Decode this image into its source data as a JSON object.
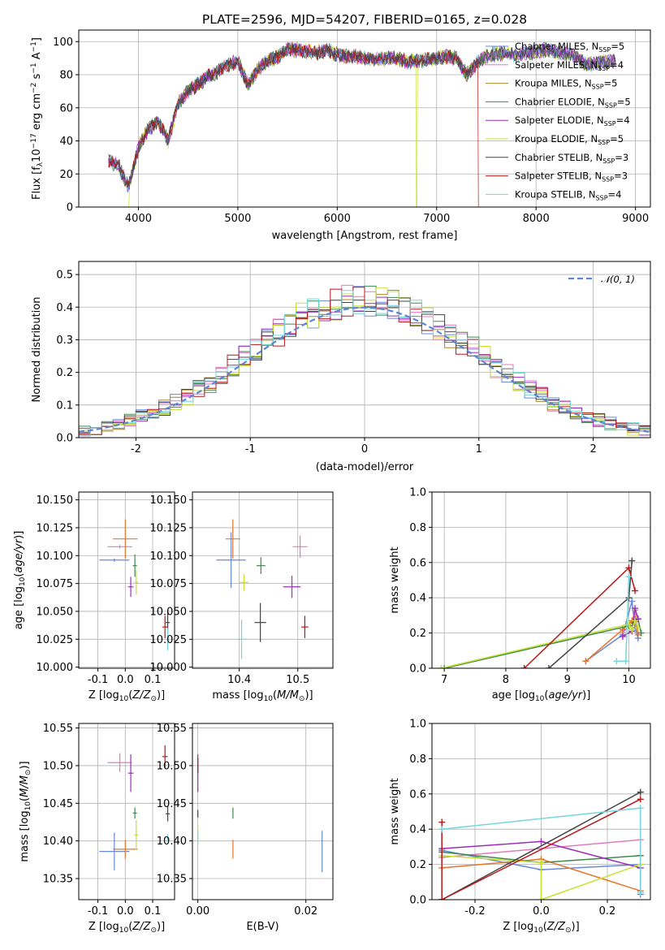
{
  "figure_title": "PLATE=2596, MJD=54207, FIBERID=0165, z=0.028",
  "models": [
    {
      "name": "Chabrier MILES, N",
      "sub": "SSP",
      "tail": "=5",
      "color": "#6688dd"
    },
    {
      "name": "Salpeter MILES, N",
      "sub": "SSP",
      "tail": "=4",
      "color": "#e27bbd"
    },
    {
      "name": "Kroupa MILES, N",
      "sub": "SSP",
      "tail": "=5",
      "color": "#a88a2a"
    },
    {
      "name": "Chabrier ELODIE, N",
      "sub": "SSP",
      "tail": "=5",
      "color": "#3e8a4e"
    },
    {
      "name": "Salpeter ELODIE, N",
      "sub": "SSP",
      "tail": "=4",
      "color": "#9b2fb8"
    },
    {
      "name": "Kroupa ELODIE, N",
      "sub": "SSP",
      "tail": "=5",
      "color": "#c9e02e"
    },
    {
      "name": "Chabrier STELIB, N",
      "sub": "SSP",
      "tail": "=3",
      "color": "#444444"
    },
    {
      "name": "Salpeter STELIB, N",
      "sub": "SSP",
      "tail": "=3",
      "color": "#b81818"
    },
    {
      "name": "Kroupa STELIB, N",
      "sub": "SSP",
      "tail": "=4",
      "color": "#76d6dc"
    }
  ],
  "colors": {
    "orange": "#e8742a",
    "gauss": "#5b86d3",
    "grid": "#b0b0b0"
  },
  "chart_data": [
    {
      "id": "spectrum",
      "type": "line",
      "xlabel": "wavelength [Angstrom, rest frame]",
      "ylabel": "Flux [f_λ 10^-17 erg cm^-2 s^-1 A^-1]",
      "xlim": [
        3400,
        9150
      ],
      "ylim": [
        0,
        107
      ],
      "xticks": [
        4000,
        5000,
        6000,
        7000,
        8000,
        9000
      ],
      "yticks": [
        0,
        20,
        40,
        60,
        80,
        100
      ],
      "x": [
        3700,
        3800,
        3900,
        4000,
        4100,
        4200,
        4300,
        4400,
        4500,
        4600,
        4700,
        4800,
        4900,
        5000,
        5100,
        5200,
        5300,
        5400,
        5500,
        5600,
        5700,
        5800,
        5900,
        6000,
        6100,
        6200,
        6300,
        6400,
        6500,
        6600,
        6700,
        6800,
        6900,
        7000,
        7100,
        7200,
        7300,
        7400,
        7500,
        7600,
        7700,
        7800,
        7900,
        8000,
        8100,
        8200,
        8300,
        8400,
        8500,
        8600,
        8700,
        8800
      ],
      "series": [
        {
          "values": [
            28,
            25,
            12,
            36,
            47,
            52,
            40,
            63,
            70,
            74,
            79,
            82,
            86,
            88,
            74,
            83,
            88,
            91,
            95,
            95,
            94,
            93,
            95,
            92,
            91,
            91,
            90,
            89,
            90,
            90,
            88,
            88,
            89,
            90,
            91,
            90,
            80,
            87,
            91,
            93,
            93,
            92,
            93,
            94,
            95,
            94,
            93,
            91,
            86,
            87,
            88,
            88
          ]
        }
      ],
      "cutoffs": [
        {
          "model": "Kroupa ELODIE",
          "x": 3910,
          "end": 6800
        },
        {
          "model": "Salpeter STELIB",
          "x": 7420
        },
        {
          "model": "Kroupa STELIB",
          "x": 3700
        },
        {
          "model": "Chabrier STELIB",
          "x": 3680
        }
      ]
    },
    {
      "id": "residuals",
      "type": "bar",
      "xlabel": "(data-model)/error",
      "ylabel": "Normed distribution",
      "xlim": [
        -2.5,
        2.5
      ],
      "ylim": [
        0,
        0.54
      ],
      "xticks": [
        -2,
        -1,
        0,
        1,
        2
      ],
      "yticks": [
        0.0,
        0.1,
        0.2,
        0.3,
        0.4,
        0.5
      ],
      "legend": "N(0,1)",
      "bin_width": 0.1,
      "bin_start": -2.5,
      "reference_gaussian": {
        "mean": 0,
        "sigma": 1
      }
    },
    {
      "id": "age-vs-Z",
      "type": "scatter",
      "xlabel": "Z [log10(Z/Z⊙)]",
      "ylabel": "age [log10(age/yr)]",
      "xlim": [
        -0.17,
        0.18
      ],
      "ylim": [
        9.999,
        10.157
      ],
      "xticks": [
        -0.1,
        0.0,
        0.1
      ],
      "yticks": [
        10.0,
        10.025,
        10.05,
        10.075,
        10.1,
        10.125,
        10.15
      ],
      "points": [
        {
          "x": -0.04,
          "y": 10.096,
          "ex": 0.11,
          "ey": 0.003
        },
        {
          "x": -0.02,
          "y": 10.108,
          "ex": 0.09,
          "ey": 0.003
        },
        {
          "x": 0.0,
          "y": 10.115,
          "ex": 0.09,
          "ey": 0.035
        },
        {
          "x": 0.035,
          "y": 10.091,
          "ex": 0.015,
          "ey": 0.02
        },
        {
          "x": 0.02,
          "y": 10.072,
          "ex": 0.02,
          "ey": 0.018
        },
        {
          "x": 0.04,
          "y": 10.076,
          "ex": 0.015,
          "ey": 0.022
        },
        {
          "x": 0.155,
          "y": 10.04,
          "ex": 0.015,
          "ey": 0.02
        },
        {
          "x": 0.145,
          "y": 10.036,
          "ex": 0.02,
          "ey": 0.02
        },
        {
          "x": 0.155,
          "y": 10.025,
          "ex": 0.01,
          "ey": 0.02
        }
      ]
    },
    {
      "id": "age-vs-mass",
      "type": "scatter",
      "xlabel": "mass [log10(M/M⊙)]",
      "ylabel": "",
      "xlim": [
        10.32,
        10.56
      ],
      "ylim": [
        9.999,
        10.157
      ],
      "xticks": [
        10.4,
        10.5
      ],
      "yticks": [
        10.0,
        10.025,
        10.05,
        10.075,
        10.1,
        10.125,
        10.15
      ],
      "points": [
        {
          "x": 10.386,
          "y": 10.096,
          "ex": 0.05,
          "ey": 0.05
        },
        {
          "x": 10.504,
          "y": 10.108,
          "ex": 0.025,
          "ey": 0.02
        },
        {
          "x": 10.389,
          "y": 10.115,
          "ex": 0.025,
          "ey": 0.035
        },
        {
          "x": 10.437,
          "y": 10.091,
          "ex": 0.015,
          "ey": 0.015
        },
        {
          "x": 10.49,
          "y": 10.072,
          "ex": 0.03,
          "ey": 0.02
        },
        {
          "x": 10.408,
          "y": 10.076,
          "ex": 0.015,
          "ey": 0.015
        },
        {
          "x": 10.436,
          "y": 10.04,
          "ex": 0.02,
          "ey": 0.035
        },
        {
          "x": 10.512,
          "y": 10.036,
          "ex": 0.012,
          "ey": 0.02
        },
        {
          "x": 10.404,
          "y": 10.025,
          "ex": 0.015,
          "ey": 0.035
        }
      ]
    },
    {
      "id": "weight-vs-age",
      "type": "line",
      "xlabel": "age [log10(age/yr)]",
      "ylabel": "mass weight",
      "xlim": [
        6.8,
        10.35
      ],
      "ylim": [
        0,
        1
      ],
      "xticks": [
        7,
        8,
        9,
        10
      ],
      "yticks": [
        0.0,
        0.2,
        0.4,
        0.6,
        0.8,
        1.0
      ],
      "series": [
        {
          "x": [
            9.3,
            9.9,
            10.05,
            10.1,
            10.15
          ],
          "y": [
            0.04,
            0.19,
            0.38,
            0.23,
            0.17
          ]
        },
        {
          "x": [
            9.9,
            10.05,
            10.1,
            10.15
          ],
          "y": [
            0.2,
            0.26,
            0.33,
            0.2
          ]
        },
        {
          "x": [
            9.3,
            9.9,
            10.05,
            10.1,
            10.15
          ],
          "y": [
            0.04,
            0.22,
            0.27,
            0.28,
            0.19
          ]
        },
        {
          "x": [
            7.0,
            10.0,
            10.1,
            10.15,
            10.2
          ],
          "y": [
            0.0,
            0.24,
            0.27,
            0.28,
            0.2
          ]
        },
        {
          "x": [
            9.9,
            10.05,
            10.1,
            10.15
          ],
          "y": [
            0.18,
            0.21,
            0.34,
            0.28
          ]
        },
        {
          "x": [
            6.95,
            10.0,
            10.05,
            10.1,
            10.15
          ],
          "y": [
            0.0,
            0.25,
            0.22,
            0.27,
            0.23
          ]
        },
        {
          "x": [
            8.7,
            10.0,
            10.05
          ],
          "y": [
            0.0,
            0.4,
            0.61
          ]
        },
        {
          "x": [
            8.3,
            10.0,
            10.1
          ],
          "y": [
            0.0,
            0.57,
            0.44
          ]
        },
        {
          "x": [
            9.8,
            9.95,
            10.0
          ],
          "y": [
            0.04,
            0.04,
            0.52
          ]
        }
      ]
    },
    {
      "id": "mass-vs-Z",
      "type": "scatter",
      "xlabel": "Z [log10(Z/Z⊙)]",
      "ylabel": "mass [log10(M/M⊙)]",
      "xlim": [
        -0.17,
        0.18
      ],
      "ylim": [
        10.322,
        10.556
      ],
      "xticks": [
        -0.1,
        0.0,
        0.1
      ],
      "yticks": [
        10.35,
        10.4,
        10.45,
        10.5,
        10.55
      ],
      "points": [
        {
          "x": -0.04,
          "y": 10.386,
          "ex": 0.11,
          "ey": 0.05
        },
        {
          "x": -0.02,
          "y": 10.504,
          "ex": 0.09,
          "ey": 0.025
        },
        {
          "x": 0.0,
          "y": 10.389,
          "ex": 0.09,
          "ey": 0.025
        },
        {
          "x": 0.035,
          "y": 10.437,
          "ex": 0.015,
          "ey": 0.015
        },
        {
          "x": 0.02,
          "y": 10.49,
          "ex": 0.02,
          "ey": 0.05
        },
        {
          "x": 0.04,
          "y": 10.408,
          "ex": 0.015,
          "ey": 0.04
        },
        {
          "x": 0.155,
          "y": 10.436,
          "ex": 0.015,
          "ey": 0.02
        },
        {
          "x": 0.145,
          "y": 10.512,
          "ex": 0.02,
          "ey": 0.03
        },
        {
          "x": 0.155,
          "y": 10.404,
          "ex": 0.01,
          "ey": 0.01
        }
      ]
    },
    {
      "id": "mass-vs-ebv",
      "type": "scatter",
      "xlabel": "E(B-V)",
      "ylabel": "",
      "xlim": [
        -0.001,
        0.025
      ],
      "ylim": [
        10.322,
        10.556
      ],
      "xticks": [
        0.0,
        0.02
      ],
      "yticks": [
        10.35,
        10.4,
        10.45,
        10.5,
        10.55
      ],
      "points": [
        {
          "x": 0.023,
          "y": 10.386,
          "ex": 0.0,
          "ey": 0.055
        },
        {
          "x": 0.0,
          "y": 10.5,
          "ex": 0.0,
          "ey": 0.02
        },
        {
          "x": 0.0065,
          "y": 10.389,
          "ex": 0.0,
          "ey": 0.025
        },
        {
          "x": 0.0065,
          "y": 10.437,
          "ex": 0.0,
          "ey": 0.015
        },
        {
          "x": 0.0,
          "y": 10.49,
          "ex": 0.0,
          "ey": 0.05
        },
        {
          "x": 0.0,
          "y": 10.41,
          "ex": 0.0,
          "ey": 0.025
        },
        {
          "x": 0.0,
          "y": 10.436,
          "ex": 0.0,
          "ey": 0.01
        },
        {
          "x": 0.0,
          "y": 10.5,
          "ex": 0.0,
          "ey": 0.02
        },
        {
          "x": 0.0,
          "y": 10.404,
          "ex": 0.0,
          "ey": 0.02
        }
      ]
    },
    {
      "id": "weight-vs-Z",
      "type": "line",
      "xlabel": "Z [log10(Z/Z⊙)]",
      "ylabel": "mass weight",
      "xlim": [
        -0.33,
        0.33
      ],
      "ylim": [
        0,
        1
      ],
      "xticks": [
        -0.2,
        0.0,
        0.2
      ],
      "yticks": [
        0.0,
        0.2,
        0.4,
        0.6,
        0.8,
        1.0
      ],
      "series": [
        {
          "x": [
            -0.3,
            0.0,
            0.3,
            0.3
          ],
          "y": [
            0.28,
            0.17,
            0.2,
            0.03
          ]
        },
        {
          "x": [
            -0.3,
            0.3
          ],
          "y": [
            0.24,
            0.34
          ]
        },
        {
          "x": [
            -0.3,
            0.0,
            0.3
          ],
          "y": [
            0.18,
            0.23,
            0.05
          ]
        },
        {
          "x": [
            -0.3,
            0.0,
            0.3
          ],
          "y": [
            0.27,
            0.21,
            0.25
          ]
        },
        {
          "x": [
            -0.3,
            0.0,
            0.3
          ],
          "y": [
            0.29,
            0.33,
            0.18
          ]
        },
        {
          "x": [
            -0.3,
            0.0,
            0.0,
            0.3
          ],
          "y": [
            0.25,
            0.21,
            0.0,
            0.2
          ]
        },
        {
          "x": [
            -0.3,
            0.3
          ],
          "y": [
            0.0,
            0.61
          ]
        },
        {
          "x": [
            -0.3,
            -0.3,
            0.3
          ],
          "y": [
            0.44,
            0.0,
            0.57
          ]
        },
        {
          "x": [
            -0.3,
            0.3,
            0.3
          ],
          "y": [
            0.4,
            0.52,
            0.04
          ]
        }
      ]
    }
  ]
}
